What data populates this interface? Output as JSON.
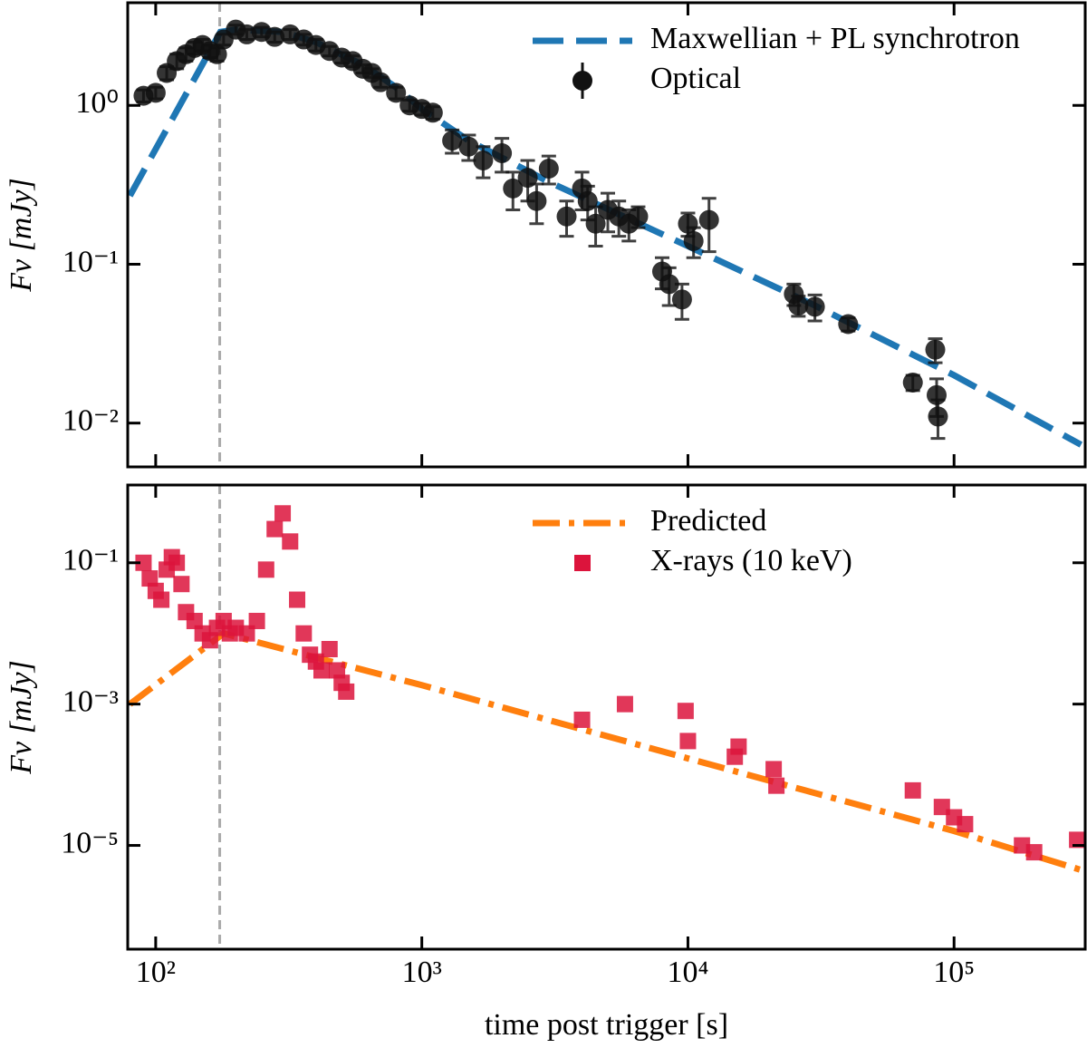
{
  "chart_data": [
    {
      "type": "line",
      "ylabel": "Fν [mJy]",
      "xlim": [
        78.5,
        311000
      ],
      "ylim": [
        0.0053,
        4.43
      ],
      "log_x": true,
      "log_y": true,
      "xticks": [
        {
          "value": 100,
          "label": "10²"
        },
        {
          "value": 1000,
          "label": "10³"
        },
        {
          "value": 10000,
          "label": "10⁴"
        },
        {
          "value": 100000,
          "label": "10⁵"
        }
      ],
      "yticks": [
        {
          "value": 0.01,
          "label": "10⁻²"
        },
        {
          "value": 0.1,
          "label": "10⁻¹"
        },
        {
          "value": 1,
          "label": "10⁰"
        }
      ],
      "vline_x": 174,
      "legend": "upper right",
      "series": [
        {
          "name": "Maxwellian + PL synchrotron",
          "type": "line",
          "style": "dashed",
          "color": "#1f77b4",
          "x": [
            80,
            175,
            200,
            300,
            400,
            600,
            800,
            1000,
            1500,
            3000,
            10000,
            30000,
            100000,
            300000
          ],
          "values": [
            0.27,
            2.9,
            3.0,
            2.9,
            2.5,
            1.8,
            1.3,
            0.95,
            0.6,
            0.33,
            0.13,
            0.055,
            0.02,
            0.0073
          ]
        },
        {
          "name": "Optical",
          "type": "scatter",
          "marker": "circle",
          "color": "#111111",
          "x": [
            90,
            100,
            110,
            120,
            130,
            140,
            150,
            160,
            170,
            180,
            200,
            220,
            250,
            280,
            320,
            360,
            400,
            450,
            500,
            550,
            600,
            650,
            700,
            800,
            900,
            1000,
            1100,
            1300,
            1500,
            1700,
            2000,
            2200,
            2500,
            2700,
            3000,
            3500,
            4000,
            4200,
            4500,
            5000,
            5500,
            6000,
            6500,
            8000,
            8500,
            9500,
            10000,
            10500,
            12000,
            25000,
            26000,
            30000,
            40000,
            70000,
            85000,
            86000,
            87000
          ],
          "values": [
            1.15,
            1.2,
            1.6,
            1.9,
            2.1,
            2.3,
            2.4,
            2.2,
            2.1,
            2.6,
            3.0,
            2.8,
            2.9,
            2.7,
            2.8,
            2.6,
            2.4,
            2.2,
            2.0,
            1.9,
            1.7,
            1.6,
            1.4,
            1.2,
            1.0,
            0.95,
            0.9,
            0.6,
            0.55,
            0.45,
            0.5,
            0.3,
            0.35,
            0.25,
            0.4,
            0.2,
            0.3,
            0.25,
            0.18,
            0.22,
            0.2,
            0.18,
            0.2,
            0.09,
            0.075,
            0.06,
            0.18,
            0.14,
            0.19,
            0.065,
            0.055,
            0.054,
            0.042,
            0.018,
            0.029,
            0.015,
            0.011
          ],
          "errors": [
            0.1,
            0.1,
            0.15,
            0.2,
            0.2,
            0.2,
            0.2,
            0.2,
            0.2,
            0.2,
            0.2,
            0.2,
            0.2,
            0.2,
            0.2,
            0.2,
            0.2,
            0.15,
            0.15,
            0.15,
            0.1,
            0.1,
            0.1,
            0.1,
            0.08,
            0.08,
            0.08,
            0.1,
            0.1,
            0.1,
            0.12,
            0.08,
            0.1,
            0.07,
            0.08,
            0.05,
            0.08,
            0.06,
            0.05,
            0.06,
            0.05,
            0.04,
            0.03,
            0.02,
            0.02,
            0.015,
            0.03,
            0.03,
            0.07,
            0.01,
            0.008,
            0.01,
            0.004,
            0.002,
            0.005,
            0.004,
            0.003
          ]
        }
      ]
    },
    {
      "type": "line",
      "ylabel": "Fν [mJy]",
      "xlabel": "time post trigger [s]",
      "xlim": [
        78.5,
        311000
      ],
      "ylim": [
        3.4e-07,
        1.26
      ],
      "log_x": true,
      "log_y": true,
      "xticks": [
        {
          "value": 100,
          "label": "10²"
        },
        {
          "value": 1000,
          "label": "10³"
        },
        {
          "value": 10000,
          "label": "10⁴"
        },
        {
          "value": 100000,
          "label": "10⁵"
        }
      ],
      "yticks": [
        {
          "value": 1e-05,
          "label": "10⁻⁵"
        },
        {
          "value": 0.001,
          "label": "10⁻³"
        },
        {
          "value": 0.1,
          "label": "10⁻¹"
        }
      ],
      "vline_x": 174,
      "legend": "upper right",
      "series": [
        {
          "name": "Predicted",
          "type": "line",
          "style": "dashdot",
          "color": "#ff7f0e",
          "x": [
            80,
            180,
            1000,
            10000,
            100000,
            300000
          ],
          "values": [
            0.001,
            0.01,
            0.00185,
            0.00017,
            1.6e-05,
            4.5e-06
          ]
        },
        {
          "name": "X-rays (10 keV)",
          "type": "scatter",
          "marker": "square",
          "color": "#dc143c",
          "x": [
            90,
            95,
            100,
            105,
            110,
            115,
            120,
            125,
            130,
            140,
            150,
            160,
            170,
            180,
            190,
            200,
            220,
            240,
            260,
            280,
            300,
            320,
            340,
            360,
            380,
            400,
            420,
            450,
            480,
            500,
            520,
            4000,
            5800,
            9800,
            10000,
            15000,
            15500,
            21000,
            21500,
            70000,
            90000,
            100000,
            110000,
            180000,
            200000,
            290000
          ],
          "values": [
            0.1,
            0.06,
            0.04,
            0.03,
            0.08,
            0.12,
            0.1,
            0.05,
            0.02,
            0.015,
            0.01,
            0.008,
            0.012,
            0.015,
            0.01,
            0.012,
            0.01,
            0.015,
            0.08,
            0.3,
            0.5,
            0.2,
            0.03,
            0.01,
            0.005,
            0.004,
            0.003,
            0.006,
            0.003,
            0.002,
            0.0015,
            0.0006,
            0.001,
            0.0008,
            0.0003,
            0.00018,
            0.00025,
            0.00012,
            7e-05,
            6e-05,
            3.5e-05,
            2.5e-05,
            2e-05,
            1e-05,
            8e-06,
            1.2e-05
          ]
        }
      ]
    }
  ]
}
